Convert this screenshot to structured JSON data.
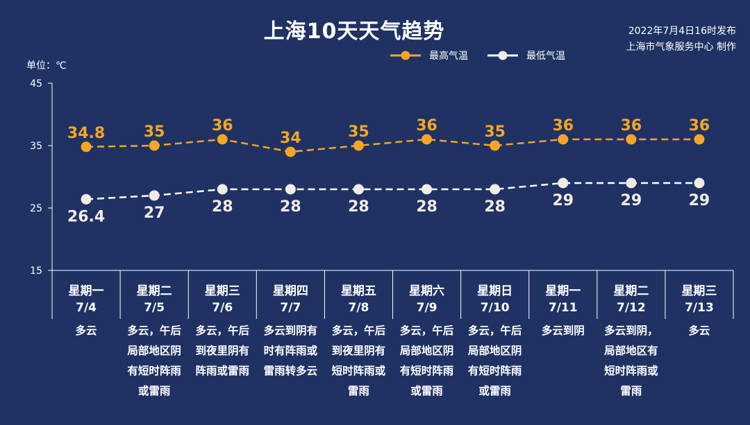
{
  "title": "上海10天天气趋势",
  "source": [
    "2022年7月4日16时发布",
    "上海市气象服务中心 制作"
  ],
  "unit_label": "单位：℃",
  "colors": {
    "background": "#1f3263",
    "high": "#f5a623",
    "low": "#ffffff",
    "axis": "#ffffff"
  },
  "chart_data": {
    "type": "line",
    "title": "上海10天天气趋势",
    "ylabel": "单位：℃",
    "ylim": [
      15,
      45
    ],
    "yticks": [
      15,
      25,
      35,
      45
    ],
    "grid": false,
    "legend_position": "top-right",
    "categories": [
      {
        "weekday": "星期一",
        "date": "7/4",
        "weather": "多云"
      },
      {
        "weekday": "星期二",
        "date": "7/5",
        "weather": "多云，午后\n局部地区阴\n有短时阵雨\n或雷雨"
      },
      {
        "weekday": "星期三",
        "date": "7/6",
        "weather": "多云，午后\n到夜里阴有\n阵雨或雷雨"
      },
      {
        "weekday": "星期四",
        "date": "7/7",
        "weather": "多云到阴有\n时有阵雨或\n雷雨转多云"
      },
      {
        "weekday": "星期五",
        "date": "7/8",
        "weather": "多云，午后\n到夜里阴有\n短时阵雨或\n雷雨"
      },
      {
        "weekday": "星期六",
        "date": "7/9",
        "weather": "多云，午后\n局部地区阴\n有短时阵雨\n或雷雨"
      },
      {
        "weekday": "星期日",
        "date": "7/10",
        "weather": "多云，午后\n局部地区阴\n有短时阵雨\n或雷雨"
      },
      {
        "weekday": "星期一",
        "date": "7/11",
        "weather": "多云到阴"
      },
      {
        "weekday": "星期二",
        "date": "7/12",
        "weather": "多云到阴，\n局部地区有\n短时阵雨或\n雷雨"
      },
      {
        "weekday": "星期三",
        "date": "7/13",
        "weather": "多云"
      }
    ],
    "series": [
      {
        "name": "最高气温",
        "color": "#f5a623",
        "labels": [
          "34.8",
          "35",
          "36",
          "34",
          "35",
          "36",
          "35",
          "36",
          "36",
          "36"
        ],
        "values": [
          34.8,
          35,
          36,
          34,
          35,
          36,
          35,
          36,
          36,
          36
        ]
      },
      {
        "name": "最低气温",
        "color": "#ffffff",
        "labels": [
          "26.4",
          "27",
          "28",
          "28",
          "28",
          "28",
          "28",
          "29",
          "29",
          "29"
        ],
        "values": [
          26.4,
          27,
          28,
          28,
          28,
          28,
          28,
          29,
          29,
          29
        ]
      }
    ]
  }
}
